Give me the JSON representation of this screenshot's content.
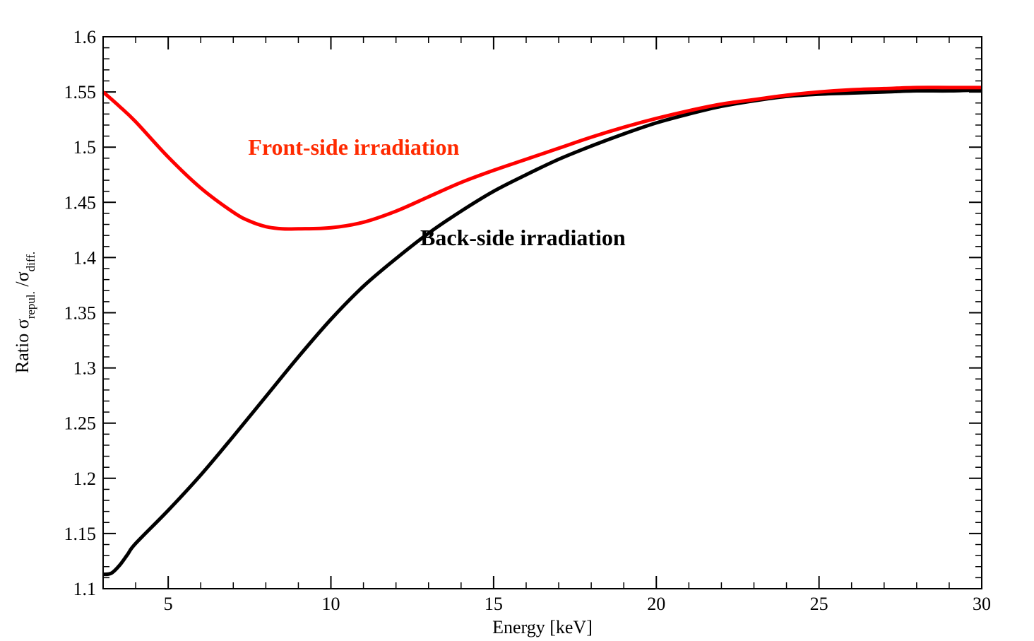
{
  "chart_data": {
    "type": "line",
    "xlabel": "Energy [keV]",
    "ylabel": {
      "prefix": "Ratio ",
      "sym1": "σ",
      "sub1": "repul.",
      "sep": " /",
      "sym2": "σ",
      "sub2": "diff."
    },
    "xlim": [
      3,
      30
    ],
    "ylim": [
      1.1,
      1.6
    ],
    "xticks": [
      5,
      10,
      15,
      20,
      25,
      30
    ],
    "xticklabels": [
      "5",
      "10",
      "15",
      "20",
      "25",
      "30"
    ],
    "yticks": [
      1.1,
      1.15,
      1.2,
      1.25,
      1.3,
      1.35,
      1.4,
      1.45,
      1.5,
      1.55,
      1.6
    ],
    "yticklabels": [
      "1.1",
      "1.15",
      "1.2",
      "1.25",
      "1.3",
      "1.35",
      "1.4",
      "1.45",
      "1.5",
      "1.55",
      "1.6"
    ],
    "x_minor_step": 1,
    "y_minor_step": 0.01,
    "grid": false,
    "series": [
      {
        "key": "front",
        "color": "#ff0000",
        "x": [
          3,
          3.5,
          4,
          5,
          6,
          7,
          7.5,
          8,
          8.5,
          9,
          10,
          11,
          12,
          13,
          14,
          15,
          16,
          17,
          18,
          19,
          20,
          21,
          22,
          23,
          24,
          25,
          26,
          27,
          28,
          29,
          30
        ],
        "y": [
          1.55,
          1.537,
          1.523,
          1.491,
          1.463,
          1.441,
          1.433,
          1.428,
          1.426,
          1.426,
          1.427,
          1.432,
          1.442,
          1.455,
          1.468,
          1.479,
          1.489,
          1.499,
          1.509,
          1.518,
          1.526,
          1.533,
          1.539,
          1.543,
          1.547,
          1.55,
          1.552,
          1.553,
          1.554,
          1.554,
          1.554
        ]
      },
      {
        "key": "back",
        "color": "#000000",
        "x": [
          3,
          3.25,
          3.5,
          3.75,
          4,
          5,
          6,
          7,
          8,
          9,
          10,
          11,
          12,
          13,
          14,
          15,
          16,
          17,
          18,
          19,
          20,
          21,
          22,
          23,
          24,
          25,
          26,
          27,
          28,
          29,
          30
        ],
        "y": [
          1.113,
          1.114,
          1.121,
          1.131,
          1.141,
          1.171,
          1.203,
          1.238,
          1.274,
          1.31,
          1.344,
          1.374,
          1.399,
          1.422,
          1.442,
          1.46,
          1.475,
          1.489,
          1.501,
          1.512,
          1.522,
          1.53,
          1.537,
          1.542,
          1.546,
          1.548,
          1.549,
          1.55,
          1.551,
          1.551,
          1.552
        ]
      }
    ],
    "annotations": [
      {
        "text": "Front-side irradiation",
        "color": "#ff2a00",
        "x": 10.7,
        "y": 1.493
      },
      {
        "text": "Back-side irradiation",
        "color": "#000000",
        "x": 15.9,
        "y": 1.411
      }
    ]
  }
}
